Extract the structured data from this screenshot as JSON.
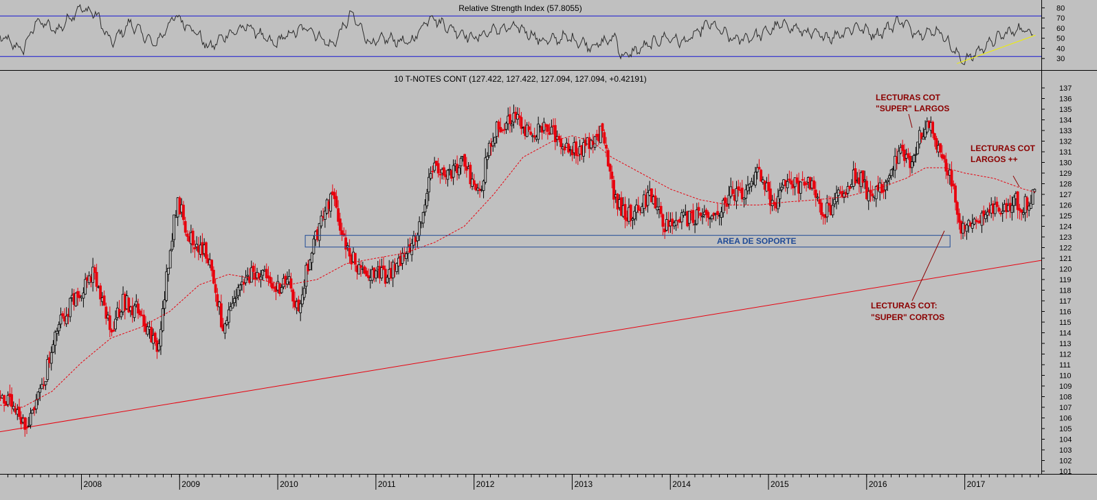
{
  "colors": {
    "background": "#c0c0c0",
    "up_candle": "#000000",
    "down_candle": "#e8000d",
    "moving_average": "#e8000d",
    "trendline": "#e8000d",
    "rsi_line": "#2b2b2b",
    "rsi_levels": "#1414d2",
    "rsi_trendline": "#f0f000",
    "support_box": "#1f4a96",
    "support_text": "#1f4a96",
    "annotation": "#8b0000"
  },
  "chart_data": [
    {
      "type": "line",
      "title": "Relative Strength Index (57.8055)",
      "current_value": 57.8055,
      "y_ticks": [
        "30",
        "40",
        "50",
        "60",
        "70",
        "80"
      ],
      "ylim": [
        22,
        85
      ],
      "levels": [
        72,
        32
      ],
      "x_range": [
        2007.17,
        2017.78
      ],
      "series": [
        {
          "x": [
            2007.17,
            2007.4,
            2007.55,
            2007.75,
            2007.98,
            2008.15,
            2008.3,
            2008.5,
            2008.75,
            2008.95,
            2009.15,
            2009.3,
            2009.45,
            2009.7,
            2009.95,
            2010.1,
            2010.3,
            2010.55,
            2010.75,
            2010.95,
            2011.1,
            2011.35,
            2011.55,
            2011.75,
            2012.0,
            2012.2,
            2012.45,
            2012.7,
            2012.95,
            2013.2,
            2013.45,
            2013.5,
            2013.75,
            2013.95,
            2014.15,
            2014.4,
            2014.65,
            2014.9,
            2015.15,
            2015.4,
            2015.65,
            2015.9,
            2016.1,
            2016.35,
            2016.5,
            2016.75,
            2016.9,
            2017.0,
            2017.2,
            2017.4,
            2017.55,
            2017.7
          ],
          "y": [
            52,
            38,
            68,
            57,
            80,
            74,
            45,
            65,
            43,
            72,
            58,
            40,
            52,
            62,
            44,
            53,
            61,
            42,
            74,
            44,
            50,
            45,
            72,
            60,
            50,
            58,
            61,
            47,
            51,
            42,
            51,
            31,
            42,
            51,
            46,
            65,
            48,
            53,
            64,
            55,
            51,
            62,
            53,
            68,
            55,
            57,
            36,
            27,
            42,
            54,
            59,
            57
          ]
        }
      ],
      "trendline": {
        "x": [
          2016.92,
          2017.72
        ],
        "y": [
          25,
          53
        ]
      }
    },
    {
      "type": "candlestick",
      "title": "10 T-NOTES CONT (127.422, 127.422, 127.094, 127.094, +0.42191)",
      "ohlc_last": {
        "open": 127.422,
        "high": 127.422,
        "low": 127.094,
        "close": 127.094,
        "change": "+0.42191"
      },
      "x_labels": [
        "2008",
        "2009",
        "2010",
        "2011",
        "2012",
        "2013",
        "2014",
        "2015",
        "2016",
        "2017"
      ],
      "y_ticks": [
        "101",
        "102",
        "103",
        "104",
        "105",
        "106",
        "107",
        "108",
        "109",
        "110",
        "111",
        "112",
        "113",
        "114",
        "115",
        "116",
        "117",
        "118",
        "119",
        "120",
        "121",
        "122",
        "123",
        "124",
        "125",
        "126",
        "127",
        "128",
        "129",
        "130",
        "131",
        "132",
        "133",
        "134",
        "135",
        "136",
        "137"
      ],
      "ylim": [
        101,
        137
      ],
      "x_range": [
        2007.17,
        2017.78
      ],
      "price_path": {
        "x": [
          2007.17,
          2007.25,
          2007.42,
          2007.6,
          2007.78,
          2007.98,
          2008.12,
          2008.3,
          2008.42,
          2008.6,
          2008.78,
          2008.9,
          2008.98,
          2009.1,
          2009.3,
          2009.45,
          2009.6,
          2009.8,
          2009.95,
          2010.1,
          2010.2,
          2010.35,
          2010.55,
          2010.7,
          2010.85,
          2011.0,
          2011.1,
          2011.3,
          2011.45,
          2011.55,
          2011.7,
          2011.9,
          2012.05,
          2012.2,
          2012.4,
          2012.55,
          2012.75,
          2012.9,
          2013.1,
          2013.3,
          2013.45,
          2013.6,
          2013.8,
          2013.95,
          2014.1,
          2014.35,
          2014.5,
          2014.6,
          2014.75,
          2014.9,
          2015.05,
          2015.2,
          2015.3,
          2015.45,
          2015.55,
          2015.75,
          2015.9,
          2016.05,
          2016.2,
          2016.35,
          2016.45,
          2016.55,
          2016.65,
          2016.75,
          2016.85,
          2016.95,
          2017.1,
          2017.2,
          2017.35,
          2017.5,
          2017.6,
          2017.72
        ],
        "y": [
          108,
          107.5,
          105,
          109,
          115,
          118,
          119.5,
          114,
          117,
          116,
          112,
          122,
          126.5,
          123,
          121,
          114,
          118,
          120,
          118,
          119,
          116,
          122,
          127,
          122,
          119.5,
          120,
          119,
          121.5,
          124,
          129.5,
          128.5,
          130,
          127,
          133,
          134.5,
          133,
          133,
          132,
          131,
          133,
          126,
          125,
          127,
          124,
          124.5,
          125,
          125,
          127,
          126.5,
          129,
          126,
          128.5,
          127.5,
          128,
          125,
          127,
          129,
          126.5,
          128,
          131,
          130,
          132.5,
          133.5,
          131,
          129,
          124,
          124,
          125,
          125.5,
          126.5,
          126,
          127.1
        ]
      },
      "moving_average": {
        "x": [
          2007.17,
          2007.4,
          2007.7,
          2008.0,
          2008.3,
          2008.6,
          2008.9,
          2009.2,
          2009.5,
          2009.8,
          2010.1,
          2010.4,
          2010.7,
          2011.0,
          2011.3,
          2011.6,
          2011.9,
          2012.2,
          2012.5,
          2012.8,
          2013.0,
          2013.2,
          2013.4,
          2013.7,
          2014.0,
          2014.3,
          2014.6,
          2014.9,
          2015.2,
          2015.5,
          2015.8,
          2016.1,
          2016.4,
          2016.6,
          2016.8,
          2017.0,
          2017.3,
          2017.6,
          2017.72
        ],
        "y": [
          107.2,
          107.0,
          108.5,
          111.2,
          113.5,
          114.5,
          116.0,
          118.5,
          119.5,
          119.0,
          118.5,
          119.0,
          120.5,
          121.0,
          121.5,
          122.5,
          124.0,
          127.0,
          130.5,
          132.0,
          132.5,
          132.0,
          130.5,
          129.0,
          127.5,
          126.5,
          126.0,
          126.0,
          126.3,
          126.5,
          126.8,
          127.5,
          128.5,
          129.5,
          129.5,
          129.0,
          128.5,
          127.5,
          127.2
        ]
      },
      "support_area": {
        "label": "AREA DE SOPORTE",
        "x": [
          2010.28,
          2016.85
        ],
        "y": [
          122.05,
          123.15
        ]
      },
      "trendline": {
        "x": [
          2007.17,
          2017.78
        ],
        "y": [
          104.7,
          120.8
        ]
      },
      "annotations": [
        {
          "lines": [
            "LECTURAS COT",
            "\"SUPER\" LARGOS"
          ]
        },
        {
          "lines": [
            "LECTURAS COT:",
            "\"SUPER\" CORTOS"
          ]
        },
        {
          "lines": [
            "LECTURAS COT",
            "LARGOS ++"
          ]
        }
      ]
    }
  ]
}
